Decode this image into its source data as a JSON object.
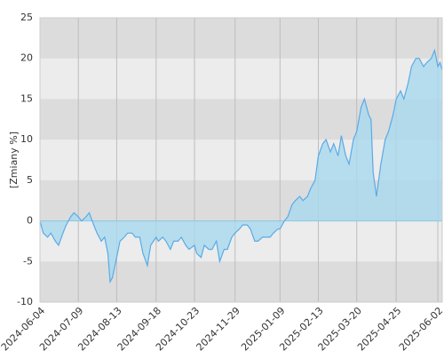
{
  "chart_data": {
    "type": "area",
    "y_label": "[Zmiany %]",
    "x": [
      "2024-06-04",
      "2024-06-07",
      "2024-06-11",
      "2024-06-14",
      "2024-06-18",
      "2024-06-21",
      "2024-06-25",
      "2024-06-28",
      "2024-07-02",
      "2024-07-05",
      "2024-07-09",
      "2024-07-12",
      "2024-07-16",
      "2024-07-19",
      "2024-07-23",
      "2024-07-26",
      "2024-07-30",
      "2024-08-02",
      "2024-08-05",
      "2024-08-07",
      "2024-08-09",
      "2024-08-13",
      "2024-08-16",
      "2024-08-20",
      "2024-08-23",
      "2024-08-27",
      "2024-08-30",
      "2024-09-03",
      "2024-09-06",
      "2024-09-10",
      "2024-09-13",
      "2024-09-18",
      "2024-09-20",
      "2024-09-24",
      "2024-09-27",
      "2024-10-01",
      "2024-10-04",
      "2024-10-08",
      "2024-10-11",
      "2024-10-15",
      "2024-10-18",
      "2024-10-23",
      "2024-10-25",
      "2024-10-29",
      "2024-11-01",
      "2024-11-05",
      "2024-11-08",
      "2024-11-12",
      "2024-11-15",
      "2024-11-19",
      "2024-11-22",
      "2024-11-26",
      "2024-11-29",
      "2024-12-03",
      "2024-12-06",
      "2024-12-10",
      "2024-12-13",
      "2024-12-17",
      "2024-12-20",
      "2024-12-24",
      "2024-12-31",
      "2025-01-03",
      "2025-01-07",
      "2025-01-09",
      "2025-01-13",
      "2025-01-16",
      "2025-01-20",
      "2025-01-23",
      "2025-01-27",
      "2025-01-30",
      "2025-02-03",
      "2025-02-06",
      "2025-02-10",
      "2025-02-13",
      "2025-02-17",
      "2025-02-20",
      "2025-02-24",
      "2025-02-27",
      "2025-03-03",
      "2025-03-06",
      "2025-03-10",
      "2025-03-13",
      "2025-03-17",
      "2025-03-20",
      "2025-03-24",
      "2025-03-27",
      "2025-03-31",
      "2025-04-02",
      "2025-04-04",
      "2025-04-07",
      "2025-04-09",
      "2025-04-11",
      "2025-04-15",
      "2025-04-18",
      "2025-04-22",
      "2025-04-25",
      "2025-04-29",
      "2025-05-02",
      "2025-05-06",
      "2025-05-09",
      "2025-05-13",
      "2025-05-16",
      "2025-05-20",
      "2025-05-23",
      "2025-05-27",
      "2025-05-30",
      "2025-06-02",
      "2025-06-04",
      "2025-06-06"
    ],
    "values": [
      0,
      -1.5,
      -2,
      -1.5,
      -2.5,
      -3,
      -1.5,
      -0.5,
      0.5,
      1,
      0.5,
      0,
      0.5,
      1,
      -0.5,
      -1.5,
      -2.5,
      -2,
      -4,
      -7.5,
      -7,
      -4.5,
      -2.5,
      -2,
      -1.5,
      -1.5,
      -2,
      -2,
      -4,
      -5.5,
      -3,
      -2,
      -2.5,
      -2,
      -2.5,
      -3.5,
      -2.5,
      -2.5,
      -2,
      -3,
      -3.5,
      -3,
      -4,
      -4.5,
      -3,
      -3.5,
      -3.5,
      -2.5,
      -5,
      -3.5,
      -3.5,
      -2,
      -1.5,
      -1,
      -0.5,
      -0.5,
      -1,
      -2.5,
      -2.5,
      -2,
      -2,
      -1.5,
      -1,
      -1,
      0,
      0.5,
      2,
      2.5,
      3,
      2.5,
      3,
      4,
      5,
      8,
      9.5,
      10,
      8.5,
      9.5,
      8,
      10.5,
      8,
      7,
      10,
      11,
      14,
      15,
      13,
      12.5,
      6,
      3,
      5,
      7,
      10,
      11,
      13,
      15,
      16,
      15,
      17,
      19,
      20,
      20,
      19,
      19.5,
      20,
      21,
      19,
      19.5,
      18.5
    ],
    "color": "#5aaae8",
    "fill": "#a9d9ee",
    "xlim": [
      "2024-06-04",
      "2025-06-06"
    ],
    "xticks": [
      "2024-06-04",
      "2024-07-09",
      "2024-08-13",
      "2024-09-18",
      "2024-10-23",
      "2024-11-29",
      "2025-01-09",
      "2025-02-13",
      "2025-03-20",
      "2025-04-25",
      "2025-06-02"
    ],
    "ylim": [
      -10,
      25
    ],
    "yticks": [
      -10,
      -5,
      0,
      5,
      10,
      15,
      20,
      25
    ],
    "grid": true
  }
}
